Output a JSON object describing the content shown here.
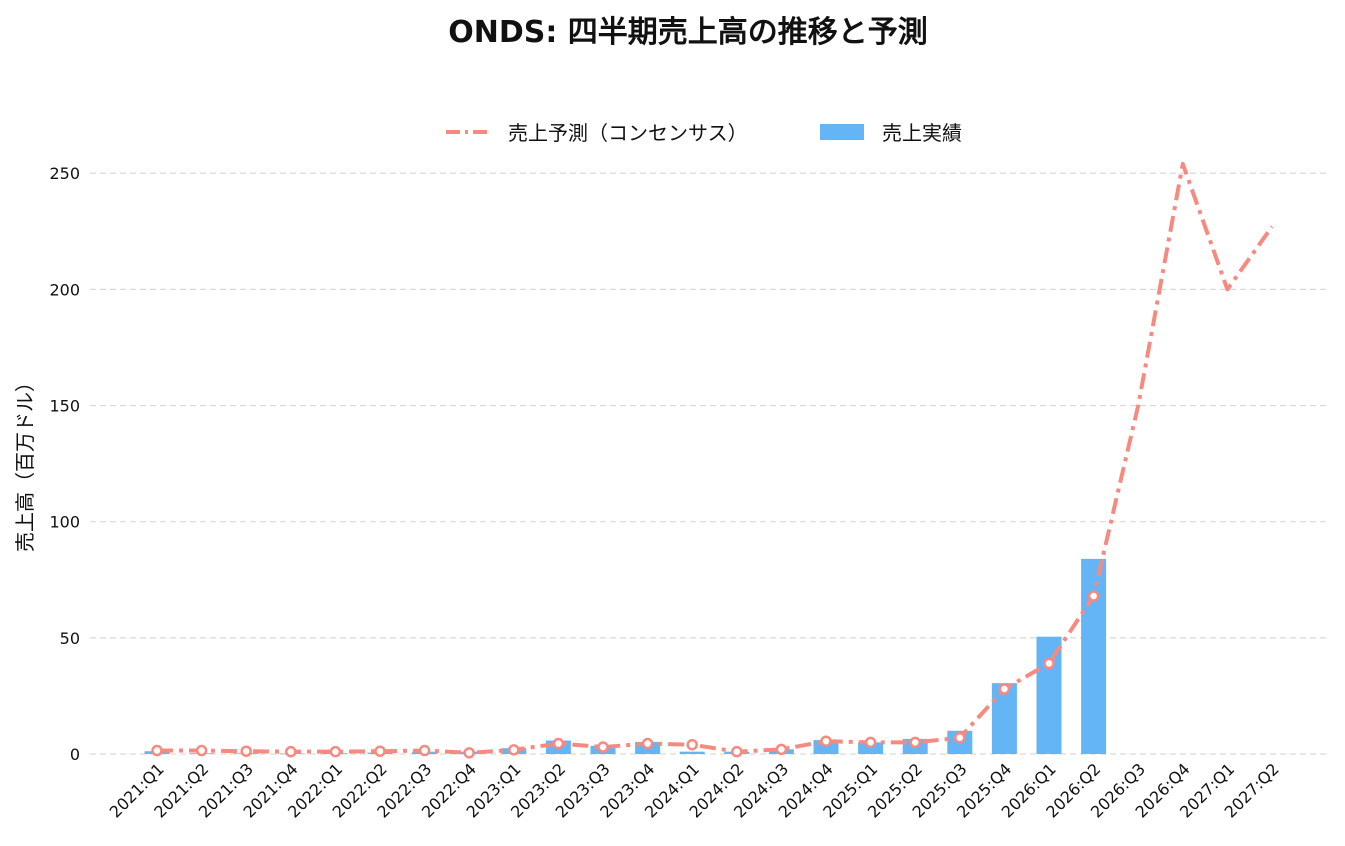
{
  "chart_data": {
    "type": "bar",
    "title": "ONDS: 四半期売上高の推移と予測",
    "xlabel": "",
    "ylabel": "売上高（百万ドル）",
    "ylim": [
      0,
      260
    ],
    "yticks": [
      0,
      50,
      100,
      150,
      200,
      250
    ],
    "grid": "horizontal dashed",
    "legend_placement": "top-center",
    "categories": [
      "2021:Q1",
      "2021:Q2",
      "2021:Q3",
      "2021:Q4",
      "2022:Q1",
      "2022:Q2",
      "2022:Q3",
      "2022:Q4",
      "2023:Q1",
      "2023:Q2",
      "2023:Q3",
      "2023:Q4",
      "2024:Q1",
      "2024:Q2",
      "2024:Q3",
      "2024:Q4",
      "2025:Q1",
      "2025:Q2",
      "2025:Q3",
      "2025:Q4",
      "2026:Q1",
      "2026:Q2",
      "2026:Q3",
      "2026:Q4",
      "2027:Q1",
      "2027:Q2"
    ],
    "series": [
      {
        "name": "売上予測（コンセンサス）",
        "kind": "line",
        "style": "dash-dot",
        "color": "#f78a80",
        "values": [
          1.5,
          1.5,
          1.2,
          1.0,
          1.0,
          1.2,
          1.5,
          0.5,
          1.8,
          4.5,
          3.0,
          4.5,
          4.0,
          1.0,
          2.0,
          5.5,
          5.0,
          5.0,
          7.0,
          28.0,
          39.0,
          68.0,
          150.0,
          254.0,
          200.0,
          227.0
        ]
      },
      {
        "name": "売上実績",
        "kind": "bar",
        "color": "#63b5f6",
        "values": [
          1.2,
          0.3,
          0.3,
          0.2,
          0.3,
          0.6,
          1.0,
          1.0,
          2.5,
          5.8,
          3.5,
          5.2,
          1.0,
          1.0,
          2.0,
          6.0,
          5.0,
          6.5,
          10.0,
          30.5,
          50.5,
          84.0,
          null,
          null,
          null,
          null
        ]
      }
    ],
    "colors": {
      "grid": "#d9d9d9",
      "marker_fill": "#ffffff"
    }
  }
}
